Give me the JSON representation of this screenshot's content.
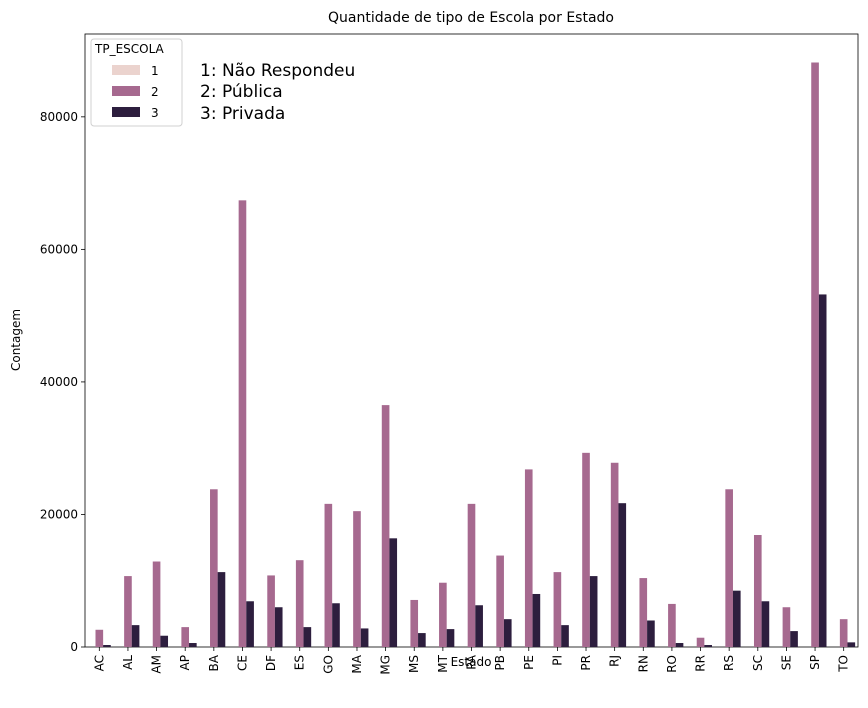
{
  "chart_data": {
    "type": "bar",
    "title": "Quantidade de tipo de Escola por Estado",
    "xlabel": "Estado",
    "ylabel": "Contagem",
    "ylim": [
      0,
      92500
    ],
    "yticks": [
      0,
      20000,
      40000,
      60000,
      80000
    ],
    "grid": false,
    "legend": {
      "title": "TP_ESCOLA",
      "position": "top-left"
    },
    "annotations": [
      "1: Não Respondeu",
      "2: Pública",
      "3: Privada"
    ],
    "categories": [
      "AC",
      "AL",
      "AM",
      "AP",
      "BA",
      "CE",
      "DF",
      "ES",
      "GO",
      "MA",
      "MG",
      "MS",
      "MT",
      "PA",
      "PB",
      "PE",
      "PI",
      "PR",
      "RJ",
      "RN",
      "RO",
      "RR",
      "RS",
      "SC",
      "SE",
      "SP",
      "TO"
    ],
    "series": [
      {
        "name": "1",
        "color": "#ebd3ce",
        "values": [
          0,
          0,
          0,
          0,
          0,
          0,
          0,
          0,
          0,
          0,
          0,
          0,
          0,
          0,
          0,
          0,
          0,
          0,
          0,
          0,
          0,
          0,
          0,
          0,
          0,
          0,
          0
        ]
      },
      {
        "name": "2",
        "color": "#a6698f",
        "values": [
          2600,
          10700,
          12900,
          3000,
          23800,
          67400,
          10800,
          13100,
          21600,
          20500,
          36500,
          7100,
          9700,
          21600,
          13800,
          26800,
          11300,
          29300,
          27800,
          10400,
          6500,
          1400,
          23800,
          16900,
          6000,
          88200,
          4200
        ]
      },
      {
        "name": "3",
        "color": "#2d1e3e",
        "values": [
          300,
          3300,
          1700,
          600,
          11300,
          6900,
          6000,
          3000,
          6600,
          2800,
          16400,
          2100,
          2700,
          6300,
          4200,
          8000,
          3300,
          10700,
          21700,
          4000,
          600,
          300,
          8500,
          6900,
          2400,
          53200,
          700
        ]
      }
    ]
  }
}
